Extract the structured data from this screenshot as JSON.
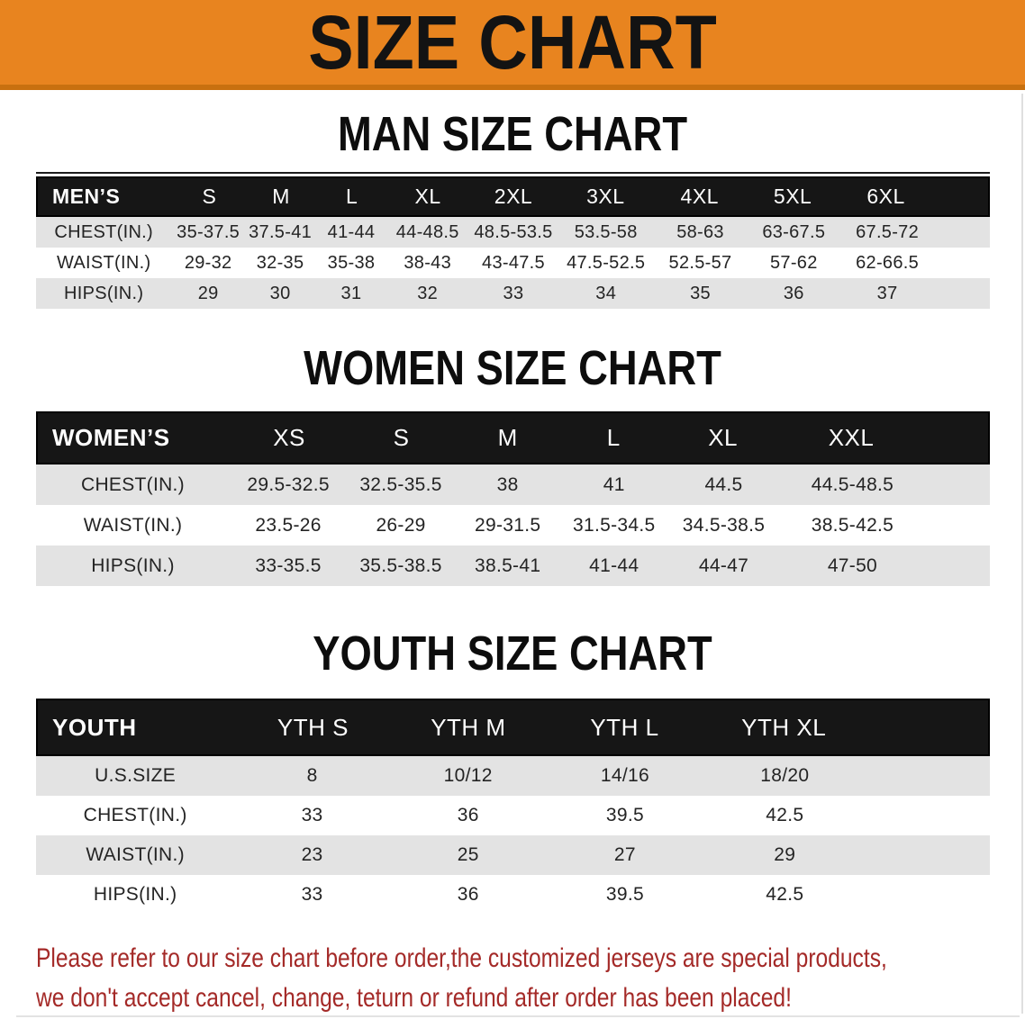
{
  "banner": {
    "title": "SIZE CHART"
  },
  "sections": [
    {
      "title": "MAN SIZE CHART",
      "corner_label": "MEN’S",
      "sizes": [
        "S",
        "M",
        "L",
        "XL",
        "2XL",
        "3XL",
        "4XL",
        "5XL",
        "6XL"
      ],
      "rows": [
        {
          "label": "CHEST(IN.)",
          "values": [
            "35-37.5",
            "37.5-41",
            "41-44",
            "44-48.5",
            "48.5-53.5",
            "53.5-58",
            "58-63",
            "63-67.5",
            "67.5-72"
          ]
        },
        {
          "label": "WAIST(IN.)",
          "values": [
            "29-32",
            "32-35",
            "35-38",
            "38-43",
            "43-47.5",
            "47.5-52.5",
            "52.5-57",
            "57-62",
            "62-66.5"
          ]
        },
        {
          "label": "HIPS(IN.)",
          "values": [
            "29",
            "30",
            "31",
            "32",
            "33",
            "34",
            "35",
            "36",
            "37"
          ]
        }
      ]
    },
    {
      "title": "WOMEN SIZE CHART",
      "corner_label": "WOMEN’S",
      "sizes": [
        "XS",
        "S",
        "M",
        "L",
        "XL",
        "XXL"
      ],
      "rows": [
        {
          "label": "CHEST(IN.)",
          "values": [
            "29.5-32.5",
            "32.5-35.5",
            "38",
            "41",
            "44.5",
            "44.5-48.5"
          ]
        },
        {
          "label": "WAIST(IN.)",
          "values": [
            "23.5-26",
            "26-29",
            "29-31.5",
            "31.5-34.5",
            "34.5-38.5",
            "38.5-42.5"
          ]
        },
        {
          "label": "HIPS(IN.)",
          "values": [
            "33-35.5",
            "35.5-38.5",
            "38.5-41",
            "41-44",
            "44-47",
            "47-50"
          ]
        }
      ]
    },
    {
      "title": "YOUTH SIZE CHART",
      "corner_label": "YOUTH",
      "sizes": [
        "YTH S",
        "YTH M",
        "YTH L",
        "YTH XL"
      ],
      "rows": [
        {
          "label": "U.S.SIZE",
          "values": [
            "8",
            "10/12",
            "14/16",
            "18/20"
          ]
        },
        {
          "label": "CHEST(IN.)",
          "values": [
            "33",
            "36",
            "39.5",
            "42.5"
          ]
        },
        {
          "label": "WAIST(IN.)",
          "values": [
            "23",
            "25",
            "27",
            "29"
          ]
        },
        {
          "label": "HIPS(IN.)",
          "values": [
            "33",
            "36",
            "39.5",
            "42.5"
          ]
        }
      ]
    }
  ],
  "disclaimer": {
    "line1": "Please refer to our size chart before order,the customized jerseys are special products,",
    "line2": "we don't accept cancel, change, teturn or refund after order has been placed!"
  },
  "colors": {
    "banner_bg": "#E8841F",
    "banner_bottom": "#C8700F",
    "band_bg": "#161616",
    "stripe_bg": "#E3E3E3",
    "disclaimer_text": "#A42A28"
  }
}
